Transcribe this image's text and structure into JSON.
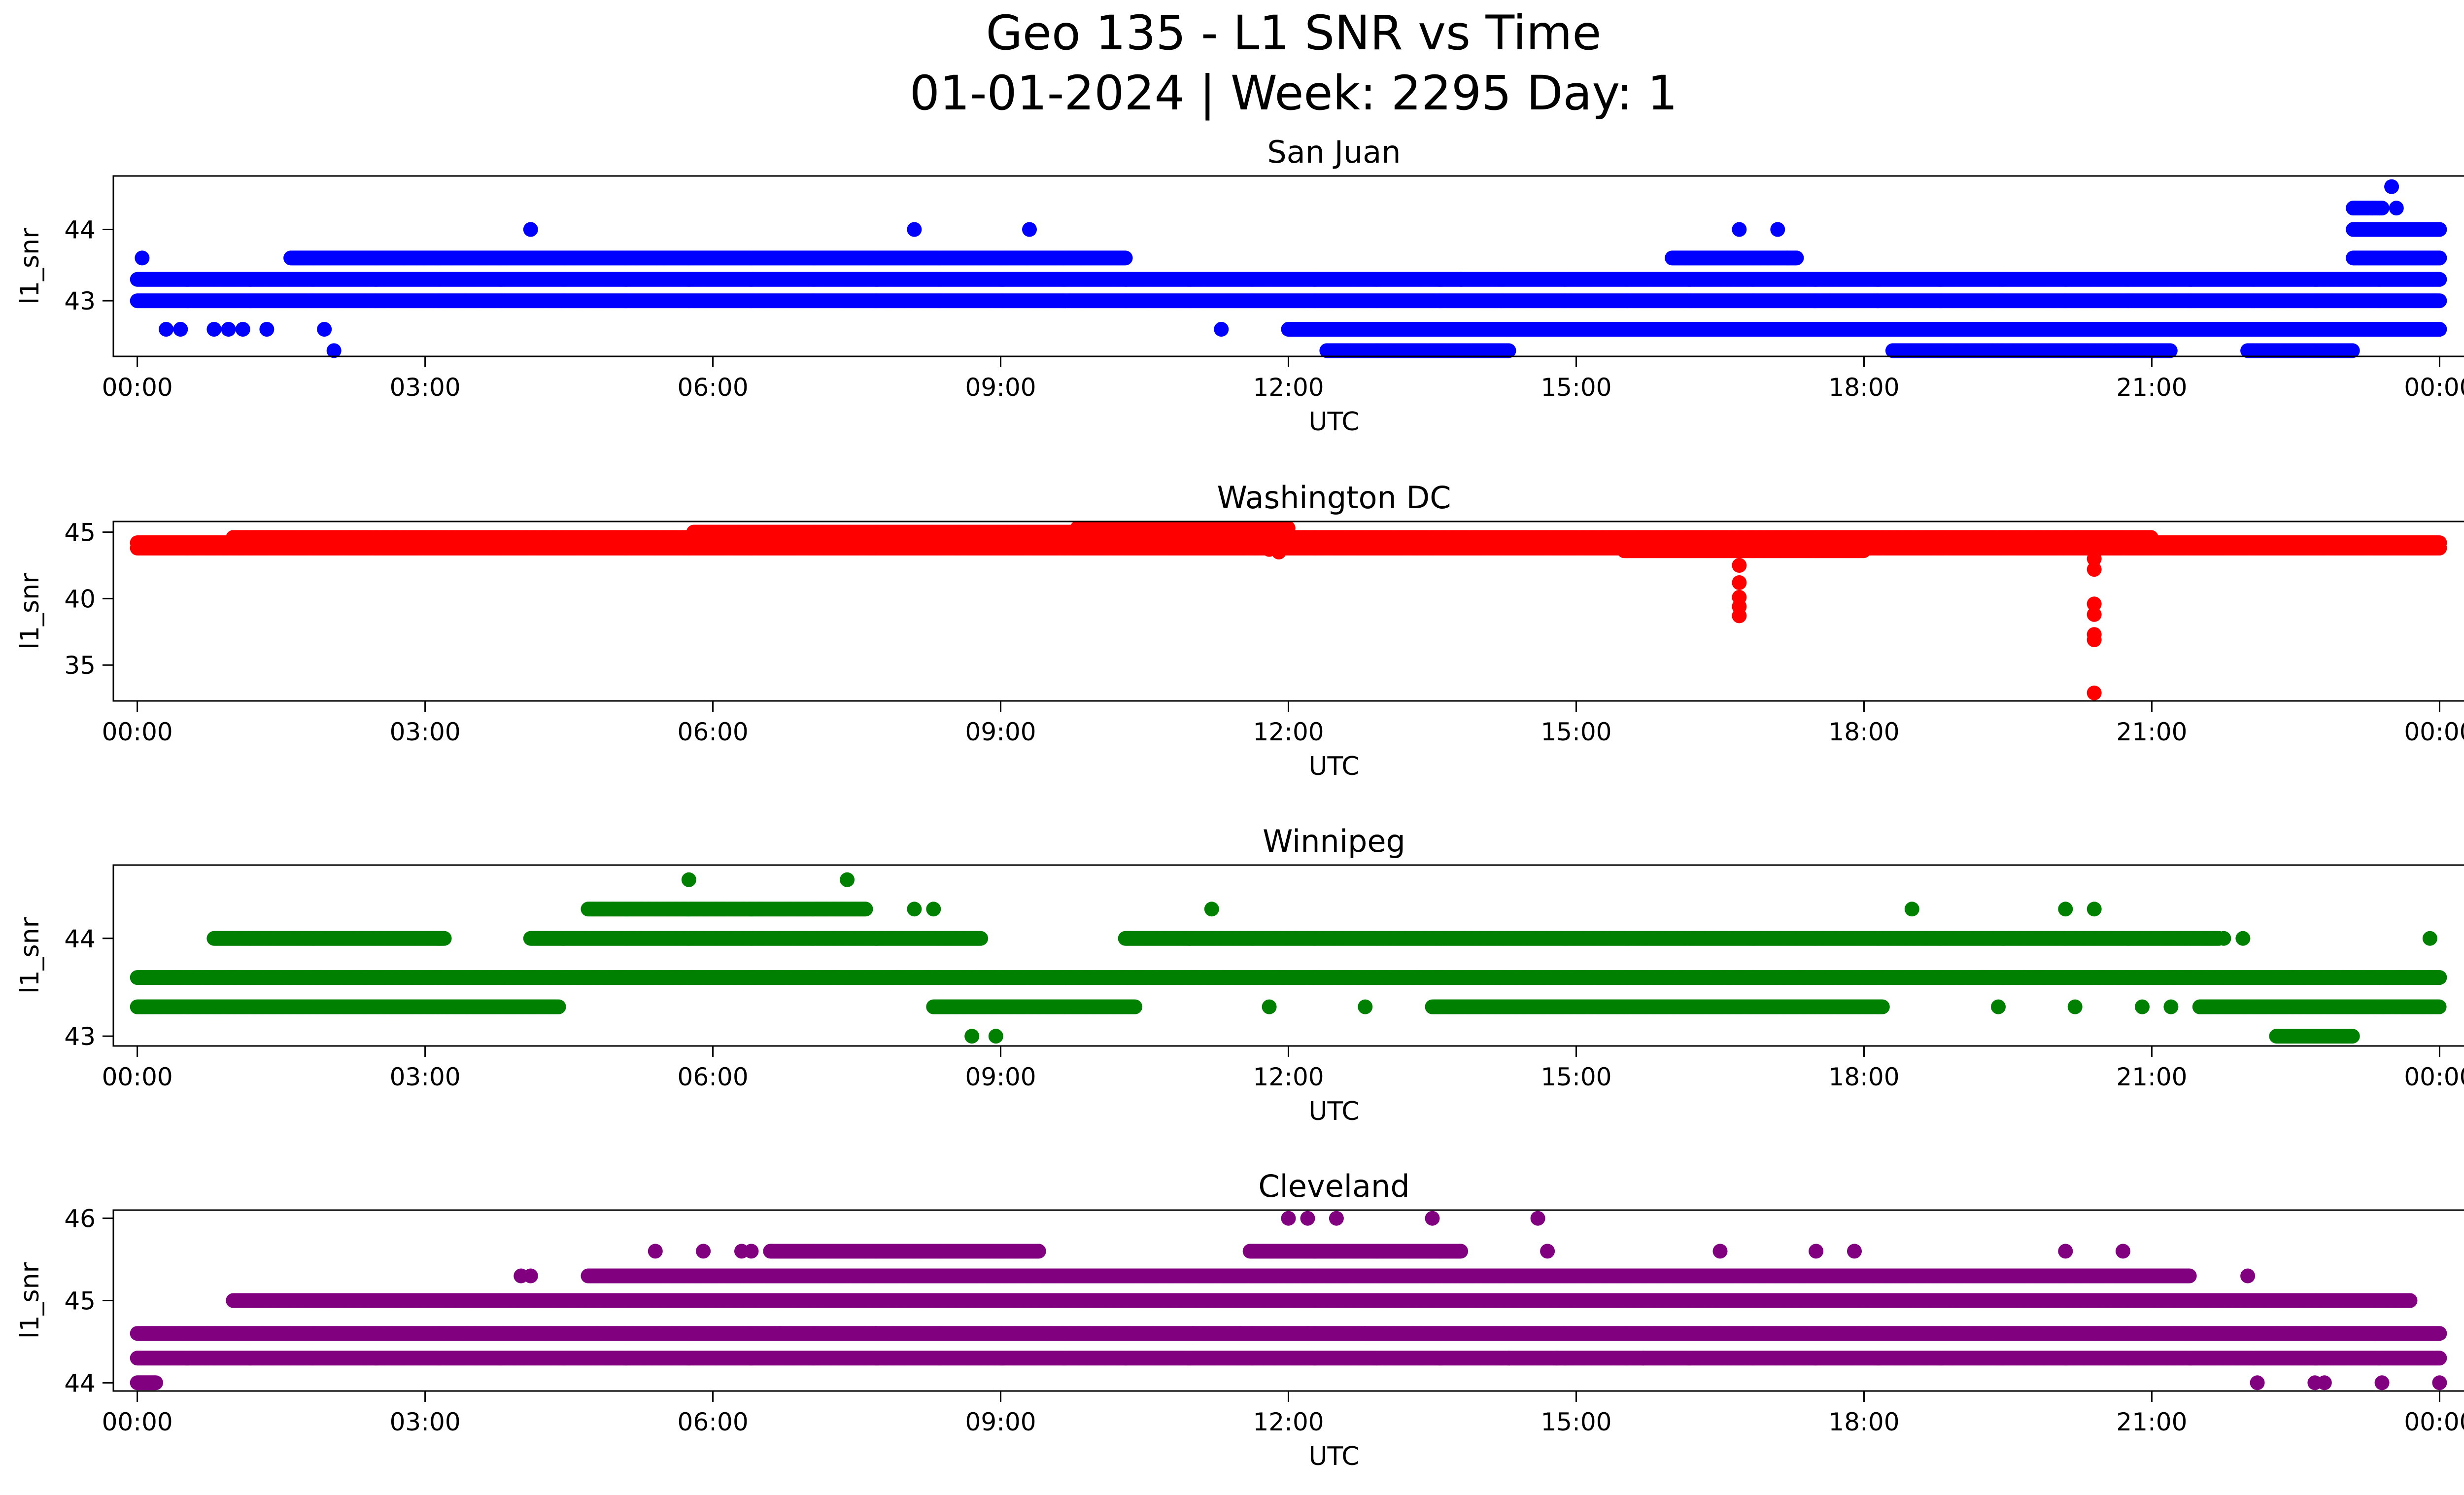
{
  "figure": {
    "title_line1": "Geo 135 - L1 SNR vs Time",
    "title_line2": "01-01-2024 | Week: 2295 Day: 1"
  },
  "chart_data": [
    {
      "type": "scatter",
      "title": "San Juan",
      "xlabel": "UTC",
      "ylabel": "l1_snr",
      "color": "#0000ff",
      "x_ticks": [
        "00:00",
        "03:00",
        "06:00",
        "09:00",
        "12:00",
        "15:00",
        "18:00",
        "21:00",
        "00:00"
      ],
      "xlim": [
        -0.25,
        25.2
      ],
      "ylim": [
        42.22,
        44.75
      ],
      "y_ticks": [
        43,
        44
      ],
      "grid": false,
      "bands": [
        {
          "y": 43.3,
          "segments": [
            [
              0,
              24
            ]
          ]
        },
        {
          "y": 43.0,
          "segments": [
            [
              0,
              24
            ]
          ]
        },
        {
          "y": 42.6,
          "segments": [
            [
              12.0,
              24.0
            ]
          ]
        },
        {
          "y": 43.6,
          "segments": [
            [
              1.6,
              10.3
            ],
            [
              16.0,
              17.3
            ],
            [
              23.1,
              24
            ]
          ]
        },
        {
          "y": 44.3,
          "segments": [
            [
              23.1,
              23.4
            ]
          ]
        },
        {
          "y": 44.0,
          "segments": [
            [
              23.1,
              24
            ]
          ]
        },
        {
          "y": 42.3,
          "segments": [
            [
              12.4,
              14.3
            ],
            [
              18.3,
              21.2
            ],
            [
              22.0,
              23.1
            ]
          ]
        }
      ],
      "points": [
        {
          "x": 0.05,
          "y": 43.6
        },
        {
          "x": 0.3,
          "y": 42.6
        },
        {
          "x": 0.45,
          "y": 42.6
        },
        {
          "x": 0.8,
          "y": 42.6
        },
        {
          "x": 0.95,
          "y": 42.6
        },
        {
          "x": 1.1,
          "y": 42.6
        },
        {
          "x": 1.35,
          "y": 42.6
        },
        {
          "x": 1.95,
          "y": 42.6
        },
        {
          "x": 2.05,
          "y": 42.3
        },
        {
          "x": 4.1,
          "y": 44.0
        },
        {
          "x": 8.1,
          "y": 44.0
        },
        {
          "x": 9.3,
          "y": 44.0
        },
        {
          "x": 11.3,
          "y": 42.6
        },
        {
          "x": 13.8,
          "y": 43.3
        },
        {
          "x": 16.7,
          "y": 44.0
        },
        {
          "x": 17.1,
          "y": 44.0
        },
        {
          "x": 17.2,
          "y": 43.6
        },
        {
          "x": 16.6,
          "y": 42.6
        },
        {
          "x": 23.5,
          "y": 44.6
        },
        {
          "x": 23.3,
          "y": 44.3
        },
        {
          "x": 23.55,
          "y": 44.3
        }
      ]
    },
    {
      "type": "scatter",
      "title": "Washington DC",
      "xlabel": "UTC",
      "ylabel": "l1_snr",
      "color": "#ff0000",
      "x_ticks": [
        "00:00",
        "03:00",
        "06:00",
        "09:00",
        "12:00",
        "15:00",
        "18:00",
        "21:00",
        "00:00"
      ],
      "xlim": [
        -0.25,
        25.2
      ],
      "ylim": [
        32.3,
        45.8
      ],
      "y_ticks": [
        35,
        40,
        45
      ],
      "grid": false,
      "bands": [
        {
          "y": 44.2,
          "segments": [
            [
              0,
              24
            ]
          ]
        },
        {
          "y": 43.8,
          "segments": [
            [
              0,
              24
            ]
          ]
        },
        {
          "y": 44.6,
          "segments": [
            [
              1.0,
              21.0
            ]
          ]
        },
        {
          "y": 45.0,
          "segments": [
            [
              5.8,
              12.0
            ]
          ]
        },
        {
          "y": 45.3,
          "segments": [
            [
              9.8,
              12.0
            ]
          ]
        },
        {
          "y": 43.6,
          "segments": [
            [
              15.5,
              18.0
            ]
          ]
        }
      ],
      "points": [
        {
          "x": 16.7,
          "y": 42.5
        },
        {
          "x": 16.7,
          "y": 41.2
        },
        {
          "x": 16.7,
          "y": 40.1
        },
        {
          "x": 16.7,
          "y": 39.4
        },
        {
          "x": 16.7,
          "y": 38.7
        },
        {
          "x": 20.4,
          "y": 43.0
        },
        {
          "x": 20.4,
          "y": 42.2
        },
        {
          "x": 20.4,
          "y": 39.6
        },
        {
          "x": 20.4,
          "y": 38.8
        },
        {
          "x": 20.4,
          "y": 37.3
        },
        {
          "x": 20.4,
          "y": 36.9
        },
        {
          "x": 20.4,
          "y": 32.9
        },
        {
          "x": 11.9,
          "y": 43.5
        },
        {
          "x": 11.8,
          "y": 43.7
        }
      ]
    },
    {
      "type": "scatter",
      "title": "Winnipeg",
      "xlabel": "UTC",
      "ylabel": "l1_snr",
      "color": "#008000",
      "x_ticks": [
        "00:00",
        "03:00",
        "06:00",
        "09:00",
        "12:00",
        "15:00",
        "18:00",
        "21:00",
        "00:00"
      ],
      "xlim": [
        -0.25,
        25.2
      ],
      "ylim": [
        42.9,
        44.75
      ],
      "y_ticks": [
        43,
        44
      ],
      "grid": false,
      "bands": [
        {
          "y": 43.6,
          "segments": [
            [
              0,
              24
            ]
          ]
        },
        {
          "y": 43.3,
          "segments": [
            [
              0,
              4.4
            ],
            [
              8.3,
              10.4
            ],
            [
              13.5,
              18.2
            ],
            [
              21.5,
              24
            ]
          ]
        },
        {
          "y": 44.0,
          "segments": [
            [
              0.8,
              3.2
            ],
            [
              4.1,
              8.8
            ],
            [
              10.3,
              21.7
            ]
          ]
        },
        {
          "y": 44.3,
          "segments": [
            [
              4.7,
              7.6
            ]
          ]
        },
        {
          "y": 43.0,
          "segments": [
            [
              22.3,
              23.1
            ]
          ]
        }
      ],
      "points": [
        {
          "x": 5.75,
          "y": 44.6
        },
        {
          "x": 7.4,
          "y": 44.6
        },
        {
          "x": 8.1,
          "y": 44.3
        },
        {
          "x": 8.3,
          "y": 44.3
        },
        {
          "x": 11.2,
          "y": 44.3
        },
        {
          "x": 18.5,
          "y": 44.3
        },
        {
          "x": 20.1,
          "y": 44.3
        },
        {
          "x": 20.4,
          "y": 44.3
        },
        {
          "x": 8.7,
          "y": 43.0
        },
        {
          "x": 8.95,
          "y": 43.0
        },
        {
          "x": 21.95,
          "y": 44.0
        },
        {
          "x": 21.75,
          "y": 44.0
        },
        {
          "x": 23.9,
          "y": 44.0
        },
        {
          "x": 19.4,
          "y": 43.3
        },
        {
          "x": 20.2,
          "y": 43.3
        },
        {
          "x": 20.9,
          "y": 43.3
        },
        {
          "x": 21.2,
          "y": 43.3
        },
        {
          "x": 11.8,
          "y": 43.3
        },
        {
          "x": 12.8,
          "y": 43.3
        }
      ]
    },
    {
      "type": "scatter",
      "title": "Cleveland",
      "xlabel": "UTC",
      "ylabel": "l1_snr",
      "color": "#800080",
      "x_ticks": [
        "00:00",
        "03:00",
        "06:00",
        "09:00",
        "12:00",
        "15:00",
        "18:00",
        "21:00",
        "00:00"
      ],
      "xlim": [
        -0.25,
        25.2
      ],
      "ylim": [
        43.9,
        46.1
      ],
      "y_ticks": [
        44,
        45,
        46
      ],
      "grid": false,
      "bands": [
        {
          "y": 44.6,
          "segments": [
            [
              0,
              24
            ]
          ]
        },
        {
          "y": 44.3,
          "segments": [
            [
              0,
              24
            ]
          ]
        },
        {
          "y": 45.0,
          "segments": [
            [
              1.0,
              23.7
            ]
          ]
        },
        {
          "y": 45.3,
          "segments": [
            [
              4.7,
              21.4
            ]
          ]
        },
        {
          "y": 45.6,
          "segments": [
            [
              6.6,
              9.4
            ],
            [
              11.6,
              13.8
            ]
          ]
        },
        {
          "y": 44.0,
          "segments": [
            [
              0,
              0.2
            ]
          ]
        }
      ],
      "points": [
        {
          "x": 4.0,
          "y": 45.3
        },
        {
          "x": 4.1,
          "y": 45.3
        },
        {
          "x": 5.4,
          "y": 45.6
        },
        {
          "x": 5.9,
          "y": 45.6
        },
        {
          "x": 6.3,
          "y": 45.6
        },
        {
          "x": 6.4,
          "y": 45.6
        },
        {
          "x": 12.0,
          "y": 46.0
        },
        {
          "x": 12.2,
          "y": 46.0
        },
        {
          "x": 12.5,
          "y": 46.0
        },
        {
          "x": 13.5,
          "y": 46.0
        },
        {
          "x": 14.6,
          "y": 46.0
        },
        {
          "x": 14.7,
          "y": 45.6
        },
        {
          "x": 16.5,
          "y": 45.6
        },
        {
          "x": 17.5,
          "y": 45.6
        },
        {
          "x": 17.9,
          "y": 45.6
        },
        {
          "x": 20.1,
          "y": 45.6
        },
        {
          "x": 20.7,
          "y": 45.6
        },
        {
          "x": 22.0,
          "y": 45.3
        },
        {
          "x": 22.1,
          "y": 44.0
        },
        {
          "x": 22.7,
          "y": 44.0
        },
        {
          "x": 22.8,
          "y": 44.0
        },
        {
          "x": 23.4,
          "y": 44.0
        },
        {
          "x": 24.0,
          "y": 44.0
        },
        {
          "x": 7.7,
          "y": 44.6
        },
        {
          "x": 6.7,
          "y": 44.6
        },
        {
          "x": 11.0,
          "y": 44.6
        },
        {
          "x": 11.5,
          "y": 44.6
        },
        {
          "x": 12.2,
          "y": 44.6
        },
        {
          "x": 12.8,
          "y": 44.6
        },
        {
          "x": 14.3,
          "y": 44.3
        },
        {
          "x": 14.8,
          "y": 44.3
        },
        {
          "x": 15.7,
          "y": 44.3
        }
      ]
    }
  ]
}
